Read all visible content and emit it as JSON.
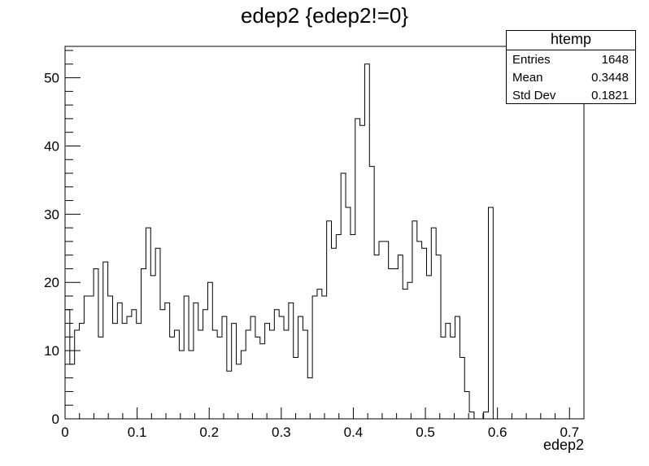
{
  "title": "edep2 {edep2!=0}",
  "stats_box": {
    "name": "htemp",
    "rows": [
      {
        "label": "Entries",
        "value": "1648"
      },
      {
        "label": "Mean",
        "value": "0.3448"
      },
      {
        "label": "Std Dev",
        "value": "0.1821"
      }
    ]
  },
  "chart_data": {
    "type": "bar",
    "title": "edep2 {edep2!=0}",
    "xlabel": "edep2",
    "ylabel": "",
    "xlim": [
      0,
      0.72
    ],
    "ylim": [
      0,
      54.6
    ],
    "bin_width": 0.0066,
    "grid": false,
    "x_ticks": [
      0,
      0.1,
      0.2,
      0.3,
      0.4,
      0.5,
      0.6,
      0.7
    ],
    "x_tick_labels": [
      "0",
      "0.1",
      "0.2",
      "0.3",
      "0.4",
      "0.5",
      "0.6",
      "0.7"
    ],
    "y_ticks": [
      0,
      10,
      20,
      30,
      40,
      50
    ],
    "y_tick_labels": [
      "0",
      "10",
      "20",
      "30",
      "40",
      "50"
    ],
    "values": [
      16,
      8,
      13,
      14,
      18,
      18,
      22,
      12,
      23,
      18,
      14,
      17,
      14,
      15,
      16,
      14,
      22,
      28,
      21,
      25,
      16,
      17,
      12,
      13,
      10,
      18,
      10,
      17,
      13,
      16,
      20,
      13,
      12,
      15,
      7,
      14,
      8,
      10,
      13,
      15,
      12,
      11,
      14,
      13,
      16,
      15,
      13,
      17,
      9,
      15,
      13,
      6,
      18,
      19,
      18,
      29,
      25,
      27,
      36,
      31,
      27,
      44,
      43,
      52,
      37,
      24,
      26,
      26,
      22,
      22,
      24,
      19,
      20,
      29,
      26,
      25,
      21,
      28,
      24,
      12,
      14,
      12,
      15,
      9,
      4,
      1,
      0,
      0,
      1,
      31,
      0
    ]
  }
}
